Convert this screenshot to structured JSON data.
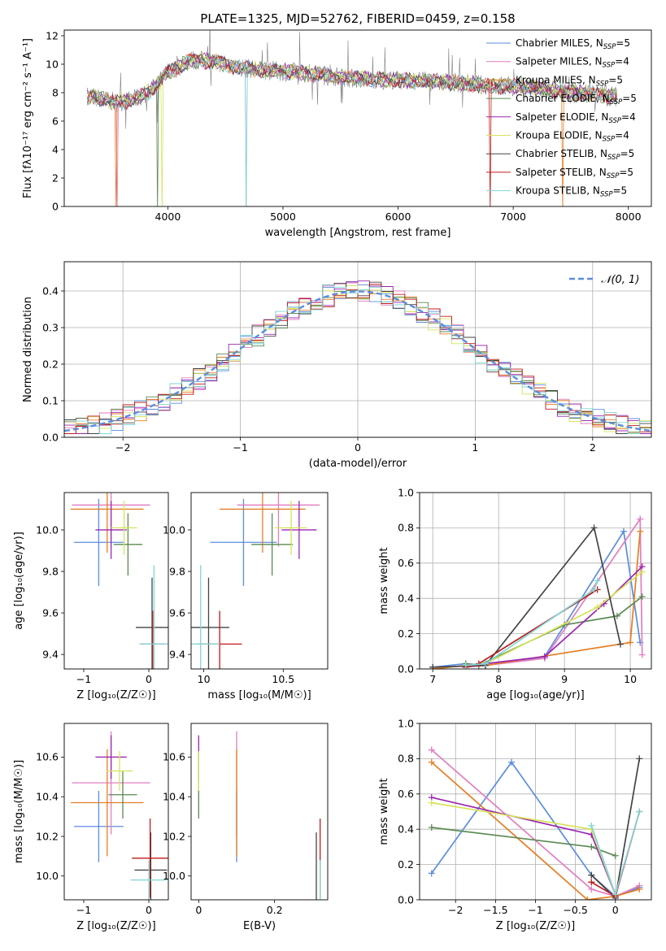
{
  "colors": {
    "Chabrier MILES": "#5b8dde",
    "Salpeter MILES": "#e07ec0",
    "Kroupa MILES": "#e67e22",
    "Chabrier ELODIE": "#5a8a52",
    "Salpeter ELODIE": "#9b27b0",
    "Kroupa ELODIE": "#d6e35a",
    "Chabrier STELIB": "#444444",
    "Salpeter STELIB": "#c01a1a",
    "Kroupa STELIB": "#7fd6d6",
    "data": "#808080",
    "normal": "#5b8dde"
  },
  "chart_data": [
    {
      "id": "spectrum",
      "type": "line",
      "title": "PLATE=1325, MJD=52762, FIBERID=0459, z=0.158",
      "xlabel": "wavelength [Angstrom, rest frame]",
      "ylabel": "Flux [fλ10⁻¹⁷ erg cm⁻² s⁻¹ A⁻¹]",
      "xlim": [
        3100,
        8200
      ],
      "ylim": [
        0,
        12.4
      ],
      "xticks": [
        4000,
        5000,
        6000,
        7000,
        8000
      ],
      "yticks": [
        0,
        2,
        4,
        6,
        8,
        10,
        12
      ],
      "grid": false,
      "legend_position": "top-right",
      "legend": [
        {
          "name": "Chabrier MILES",
          "label": "Chabrier MILES, N",
          "sub": "SSP",
          "n": "=5"
        },
        {
          "name": "Salpeter MILES",
          "label": "Salpeter MILES, N",
          "sub": "SSP",
          "n": "=4"
        },
        {
          "name": "Kroupa MILES",
          "label": "Kroupa MILES, N",
          "sub": "SSP",
          "n": "=5"
        },
        {
          "name": "Chabrier ELODIE",
          "label": "Chabrier ELODIE, N",
          "sub": "SSP",
          "n": "=5"
        },
        {
          "name": "Salpeter ELODIE",
          "label": "Salpeter ELODIE, N",
          "sub": "SSP",
          "n": "=4"
        },
        {
          "name": "Kroupa ELODIE",
          "label": "Kroupa ELODIE, N",
          "sub": "SSP",
          "n": "=4"
        },
        {
          "name": "Chabrier STELIB",
          "label": "Chabrier STELIB, N",
          "sub": "SSP",
          "n": "=5"
        },
        {
          "name": "Salpeter STELIB",
          "label": "Salpeter STELIB, N",
          "sub": "SSP",
          "n": "=5"
        },
        {
          "name": "Kroupa STELIB",
          "label": "Kroupa STELIB, N",
          "sub": "SSP",
          "n": "=5"
        }
      ],
      "continuum": [
        [
          3300,
          7.8
        ],
        [
          3400,
          7.6
        ],
        [
          3550,
          7.3
        ],
        [
          3700,
          7.5
        ],
        [
          3850,
          8.1
        ],
        [
          4000,
          9.4
        ],
        [
          4200,
          10.3
        ],
        [
          4400,
          10.2
        ],
        [
          4600,
          9.8
        ],
        [
          4800,
          9.6
        ],
        [
          5000,
          9.5
        ],
        [
          5300,
          9.3
        ],
        [
          5600,
          9.0
        ],
        [
          5900,
          8.9
        ],
        [
          6200,
          8.8
        ],
        [
          6500,
          8.7
        ],
        [
          6800,
          8.5
        ],
        [
          7100,
          8.4
        ],
        [
          7400,
          8.1
        ],
        [
          7700,
          7.9
        ],
        [
          7900,
          7.7
        ]
      ]
    },
    {
      "id": "residuals",
      "type": "histogram",
      "xlabel": "(data-model)/error",
      "ylabel": "Normed distribution",
      "xlim": [
        -2.5,
        2.5
      ],
      "ylim": [
        0,
        0.48
      ],
      "xticks": [
        -2,
        -1,
        0,
        1,
        2
      ],
      "yticks": [
        0.0,
        0.1,
        0.2,
        0.3,
        0.4
      ],
      "grid": true,
      "legend_position": "top-right",
      "legend_label": "𝒩(0, 1)",
      "bin_width": 0.1
    },
    {
      "id": "age-vs-Z",
      "type": "errorbar",
      "xlabel": "Z [log₁₀(Z/Z☉)]",
      "ylabel": "age  [log₁₀(age/yr)]",
      "xlim": [
        -1.3,
        0.3
      ],
      "ylim": [
        9.33,
        10.18
      ],
      "xticks": [
        -1,
        0
      ],
      "yticks": [
        9.4,
        9.6,
        9.8,
        10.0
      ],
      "points": [
        {
          "m": "Chabrier MILES",
          "x": -0.77,
          "xe": 0.38,
          "y": 9.94,
          "ye": 0.21
        },
        {
          "m": "Salpeter MILES",
          "x": -0.58,
          "xe": 0.6,
          "y": 10.12,
          "ye": 0.2
        },
        {
          "m": "Kroupa MILES",
          "x": -0.64,
          "xe": 0.56,
          "y": 10.1,
          "ye": 0.21
        },
        {
          "m": "Chabrier ELODIE",
          "x": -0.32,
          "xe": 0.22,
          "y": 9.93,
          "ye": 0.15
        },
        {
          "m": "Salpeter ELODIE",
          "x": -0.58,
          "xe": 0.24,
          "y": 10.0,
          "ye": 0.14
        },
        {
          "m": "Kroupa ELODIE",
          "x": -0.38,
          "xe": 0.2,
          "y": 10.01,
          "ye": 0.13
        },
        {
          "m": "Chabrier STELIB",
          "x": 0.05,
          "xe": 0.25,
          "y": 9.53,
          "ye": 0.24
        },
        {
          "m": "Salpeter STELIB",
          "x": 0.06,
          "xe": 0.2,
          "y": 9.45,
          "ye": 0.16
        },
        {
          "m": "Kroupa STELIB",
          "x": 0.08,
          "xe": 0.22,
          "y": 9.45,
          "ye": 0.38
        }
      ]
    },
    {
      "id": "age-vs-mass",
      "type": "errorbar",
      "xlabel": "mass [log₁₀(M/M☉)]",
      "xlim": [
        9.92,
        10.78
      ],
      "ylim": [
        9.33,
        10.18
      ],
      "xticks": [
        10.0,
        10.5
      ],
      "yticks": [
        9.4,
        9.6,
        9.8,
        10.0
      ],
      "points": [
        {
          "m": "Chabrier MILES",
          "x": 10.25,
          "xe": 0.21,
          "y": 9.94,
          "ye": 0.21
        },
        {
          "m": "Salpeter MILES",
          "x": 10.47,
          "xe": 0.26,
          "y": 10.12,
          "ye": 0.2
        },
        {
          "m": "Kroupa MILES",
          "x": 10.37,
          "xe": 0.27,
          "y": 10.1,
          "ye": 0.21
        },
        {
          "m": "Chabrier ELODIE",
          "x": 10.43,
          "xe": 0.13,
          "y": 9.93,
          "ye": 0.15
        },
        {
          "m": "Salpeter ELODIE",
          "x": 10.6,
          "xe": 0.11,
          "y": 10.0,
          "ye": 0.14
        },
        {
          "m": "Kroupa ELODIE",
          "x": 10.55,
          "xe": 0.1,
          "y": 10.01,
          "ye": 0.13
        },
        {
          "m": "Chabrier STELIB",
          "x": 10.03,
          "xe": 0.13,
          "y": 9.53,
          "ye": 0.24
        },
        {
          "m": "Salpeter STELIB",
          "x": 10.1,
          "xe": 0.14,
          "y": 9.45,
          "ye": 0.16
        },
        {
          "m": "Kroupa STELIB",
          "x": 9.98,
          "xe": 0.12,
          "y": 9.45,
          "ye": 0.38
        }
      ]
    },
    {
      "id": "weight-vs-age",
      "type": "line",
      "xlabel": "age  [log₁₀(age/yr)]",
      "ylabel": "mass weight",
      "xlim": [
        6.8,
        10.32
      ],
      "ylim": [
        0,
        1.0
      ],
      "xticks": [
        7,
        8,
        9,
        10
      ],
      "yticks": [
        0.0,
        0.2,
        0.4,
        0.6,
        0.8,
        1.0
      ],
      "grid": true,
      "series": [
        {
          "m": "Chabrier MILES",
          "x": [
            7.0,
            7.5,
            7.8,
            8.7,
            9.9,
            10.15
          ],
          "y": [
            0.01,
            0.03,
            0.02,
            0.07,
            0.78,
            0.15
          ]
        },
        {
          "m": "Salpeter MILES",
          "x": [
            7.5,
            7.8,
            8.7,
            10.15,
            10.18
          ],
          "y": [
            0.01,
            0.02,
            0.06,
            0.85,
            0.08
          ]
        },
        {
          "m": "Kroupa MILES",
          "x": [
            7.0,
            7.5,
            7.8,
            10.0,
            10.15
          ],
          "y": [
            0.0,
            0.02,
            0.02,
            0.15,
            0.78
          ]
        },
        {
          "m": "Chabrier ELODIE",
          "x": [
            7.5,
            7.7,
            9.0,
            9.8,
            10.18
          ],
          "y": [
            0.03,
            0.02,
            0.25,
            0.3,
            0.41
          ]
        },
        {
          "m": "Salpeter ELODIE",
          "x": [
            7.5,
            7.8,
            8.7,
            9.6,
            10.18
          ],
          "y": [
            0.01,
            0.03,
            0.07,
            0.37,
            0.58
          ]
        },
        {
          "m": "Kroupa ELODIE",
          "x": [
            7.5,
            7.8,
            9.5,
            10.18
          ],
          "y": [
            0.02,
            0.03,
            0.35,
            0.55
          ]
        },
        {
          "m": "Chabrier STELIB",
          "x": [
            7.0,
            7.8,
            9.45,
            9.85
          ],
          "y": [
            0.01,
            0.02,
            0.8,
            0.14
          ]
        },
        {
          "m": "Salpeter STELIB",
          "x": [
            7.5,
            7.7,
            9.5
          ],
          "y": [
            0.01,
            0.03,
            0.45
          ]
        },
        {
          "m": "Kroupa STELIB",
          "x": [
            7.5,
            7.8,
            9.45,
            9.5
          ],
          "y": [
            0.02,
            0.03,
            0.45,
            0.5
          ]
        }
      ]
    },
    {
      "id": "mass-vs-Z",
      "type": "errorbar",
      "xlabel": "Z [log₁₀(Z/Z☉)]",
      "ylabel": "mass [log₁₀(M/M☉)]",
      "xlim": [
        -1.3,
        0.3
      ],
      "ylim": [
        9.88,
        10.77
      ],
      "xticks": [
        -1,
        0
      ],
      "yticks": [
        10.0,
        10.2,
        10.4,
        10.6
      ],
      "points": [
        {
          "m": "Chabrier MILES",
          "x": -0.77,
          "xe": 0.38,
          "y": 10.25,
          "ye": 0.18
        },
        {
          "m": "Salpeter MILES",
          "x": -0.58,
          "xe": 0.6,
          "y": 10.47,
          "ye": 0.26
        },
        {
          "m": "Kroupa MILES",
          "x": -0.64,
          "xe": 0.56,
          "y": 10.37,
          "ye": 0.27
        },
        {
          "m": "Chabrier ELODIE",
          "x": -0.4,
          "xe": 0.22,
          "y": 10.41,
          "ye": 0.12
        },
        {
          "m": "Salpeter ELODIE",
          "x": -0.58,
          "xe": 0.24,
          "y": 10.6,
          "ye": 0.11
        },
        {
          "m": "Kroupa ELODIE",
          "x": -0.45,
          "xe": 0.2,
          "y": 10.53,
          "ye": 0.1
        },
        {
          "m": "Chabrier STELIB",
          "x": 0.03,
          "xe": 0.25,
          "y": 10.03,
          "ye": 0.19
        },
        {
          "m": "Salpeter STELIB",
          "x": 0.02,
          "xe": 0.28,
          "y": 10.09,
          "ye": 0.2
        },
        {
          "m": "Kroupa STELIB",
          "x": 0.0,
          "xe": 0.28,
          "y": 9.98,
          "ye": 0.1
        }
      ]
    },
    {
      "id": "mass-vs-ebv",
      "type": "errorbar",
      "xlabel": "E(B-V)",
      "xlim": [
        -0.02,
        0.34
      ],
      "ylim": [
        9.88,
        10.77
      ],
      "xticks": [
        0.0,
        0.2
      ],
      "yticks": [
        10.0,
        10.2,
        10.4,
        10.6
      ],
      "points": [
        {
          "m": "Chabrier MILES",
          "x": 0.1,
          "xe": 0.0,
          "y": 10.25,
          "ye": 0.18
        },
        {
          "m": "Salpeter MILES",
          "x": 0.1,
          "xe": 0.0,
          "y": 10.47,
          "ye": 0.26
        },
        {
          "m": "Kroupa MILES",
          "x": 0.1,
          "xe": 0.0,
          "y": 10.37,
          "ye": 0.27
        },
        {
          "m": "Chabrier ELODIE",
          "x": 0.0,
          "xe": 0.0,
          "y": 10.41,
          "ye": 0.12
        },
        {
          "m": "Salpeter ELODIE",
          "x": 0.0,
          "xe": 0.0,
          "y": 10.6,
          "ye": 0.11
        },
        {
          "m": "Kroupa ELODIE",
          "x": 0.0,
          "xe": 0.0,
          "y": 10.53,
          "ye": 0.1
        },
        {
          "m": "Chabrier STELIB",
          "x": 0.31,
          "xe": 0.0,
          "y": 10.03,
          "ye": 0.19
        },
        {
          "m": "Salpeter STELIB",
          "x": 0.32,
          "xe": 0.0,
          "y": 10.09,
          "ye": 0.2
        },
        {
          "m": "Kroupa STELIB",
          "x": 0.32,
          "xe": 0.0,
          "y": 9.98,
          "ye": 0.1
        }
      ]
    },
    {
      "id": "weight-vs-Z",
      "type": "line",
      "xlabel": "Z [log₁₀(Z/Z☉)]",
      "ylabel": "mass weight",
      "xlim": [
        -2.45,
        0.45
      ],
      "ylim": [
        0,
        1.0
      ],
      "xticks": [
        -2.0,
        -1.5,
        -1.0,
        -0.5,
        0.0
      ],
      "yticks": [
        0.0,
        0.2,
        0.4,
        0.6,
        0.8,
        1.0
      ],
      "grid": true,
      "series": [
        {
          "m": "Chabrier MILES",
          "x": [
            -2.3,
            -1.3,
            -0.3,
            0.0,
            0.3
          ],
          "y": [
            0.15,
            0.78,
            0.14,
            0.02,
            0.07
          ]
        },
        {
          "m": "Salpeter MILES",
          "x": [
            -2.3,
            -0.3,
            0.0,
            0.3
          ],
          "y": [
            0.85,
            0.06,
            0.02,
            0.08
          ]
        },
        {
          "m": "Kroupa MILES",
          "x": [
            -2.3,
            -0.35,
            0.0,
            0.3
          ],
          "y": [
            0.78,
            0.0,
            0.02,
            0.06
          ]
        },
        {
          "m": "Chabrier ELODIE",
          "x": [
            -2.3,
            -0.3,
            0.0
          ],
          "y": [
            0.41,
            0.3,
            0.25
          ]
        },
        {
          "m": "Salpeter ELODIE",
          "x": [
            -2.3,
            -0.3,
            0.0
          ],
          "y": [
            0.58,
            0.37,
            0.03
          ]
        },
        {
          "m": "Kroupa ELODIE",
          "x": [
            -2.3,
            -0.3,
            0.0
          ],
          "y": [
            0.55,
            0.4,
            0.03
          ]
        },
        {
          "m": "Chabrier STELIB",
          "x": [
            -0.3,
            0.0,
            0.3
          ],
          "y": [
            0.14,
            0.01,
            0.8
          ]
        },
        {
          "m": "Salpeter STELIB",
          "x": [
            -0.3,
            0.0,
            0.3
          ],
          "y": [
            0.1,
            0.02,
            0.5
          ]
        },
        {
          "m": "Kroupa STELIB",
          "x": [
            -0.3,
            0.0,
            0.3
          ],
          "y": [
            0.42,
            0.03,
            0.5
          ]
        }
      ]
    }
  ]
}
